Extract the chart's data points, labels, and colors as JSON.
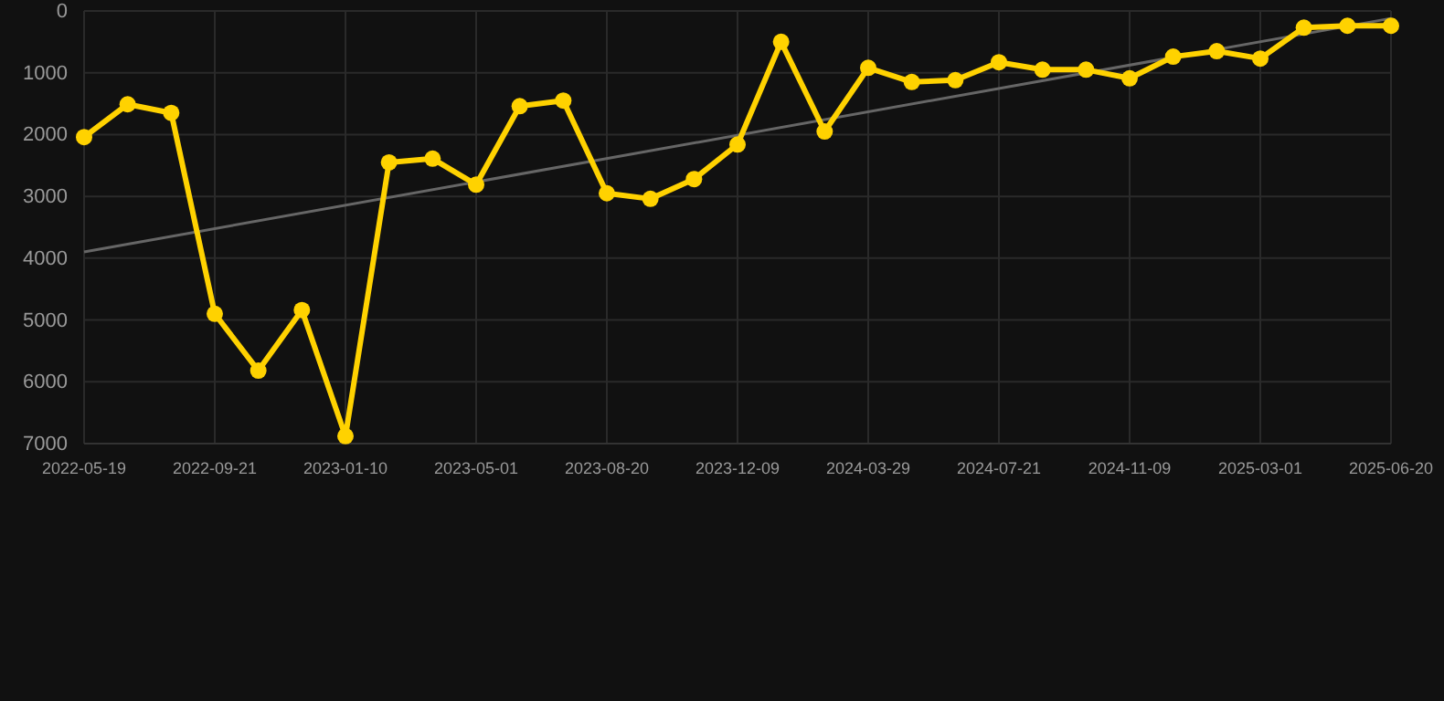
{
  "chart_data": {
    "type": "line",
    "categories": [
      "2022-05-19",
      null,
      null,
      "2022-09-21",
      null,
      null,
      "2023-01-10",
      null,
      null,
      "2023-05-01",
      null,
      null,
      "2023-08-20",
      null,
      null,
      "2023-12-09",
      null,
      null,
      "2024-03-29",
      null,
      null,
      "2024-07-21",
      null,
      null,
      "2024-11-09",
      null,
      null,
      "2025-03-01",
      null,
      null,
      "2025-06-20"
    ],
    "series": [
      {
        "color": "#ffd200",
        "marker": "circle",
        "values": [
          2040,
          1510,
          1650,
          4900,
          5820,
          4840,
          6880,
          2450,
          2390,
          2810,
          1540,
          1450,
          2950,
          3040,
          2720,
          2160,
          500,
          1950,
          920,
          1150,
          1120,
          830,
          950,
          950,
          1090,
          740,
          650,
          770,
          270,
          240,
          240
        ]
      },
      {
        "color": "#666666",
        "marker": "none",
        "values": [
          3900,
          null,
          null,
          null,
          null,
          null,
          null,
          null,
          null,
          null,
          null,
          null,
          null,
          null,
          null,
          null,
          null,
          null,
          null,
          null,
          null,
          null,
          null,
          null,
          null,
          null,
          null,
          null,
          null,
          null,
          120
        ]
      }
    ],
    "ylim": [
      7000,
      0
    ],
    "yticks": [
      0,
      1000,
      2000,
      3000,
      4000,
      5000,
      6000,
      7000
    ],
    "grid": true,
    "line_style": "solid"
  }
}
